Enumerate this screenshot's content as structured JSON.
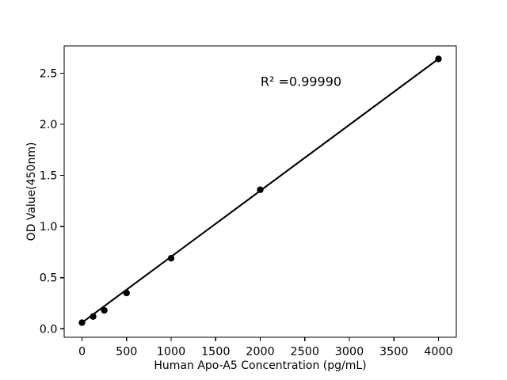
{
  "chart_data": {
    "type": "scatter",
    "title": "",
    "xlabel": "Human Apo-A5 Concentration (pg/mL)",
    "ylabel": "OD Value(450nm)",
    "annotation": "R² =0.99990",
    "x": [
      0,
      125,
      250,
      500,
      1000,
      2000,
      4000
    ],
    "y": [
      0.06,
      0.12,
      0.18,
      0.35,
      0.69,
      1.36,
      2.64
    ],
    "xticks": [
      0,
      500,
      1000,
      1500,
      2000,
      2500,
      3000,
      3500,
      4000
    ],
    "yticks": [
      "0.0",
      "0.5",
      "1.0",
      "1.5",
      "2.0",
      "2.5"
    ],
    "xlim": [
      -200,
      4200
    ],
    "ylim": [
      -0.083,
      2.767
    ],
    "line": "linear fit segment from first data point to last data point",
    "legend": "none",
    "grid": "off",
    "marker_color": "#000000",
    "line_color": "#000000",
    "background": "#ffffff"
  }
}
